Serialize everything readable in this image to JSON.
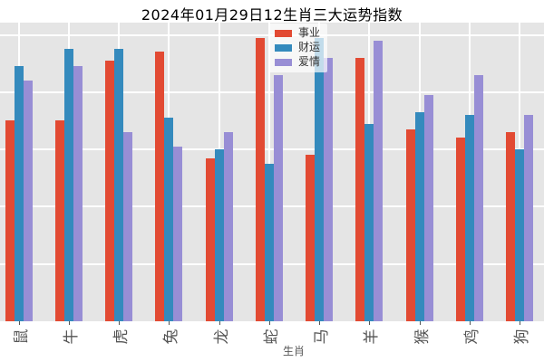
{
  "chart_data": {
    "type": "bar",
    "title": "2024年01月29日12生肖三大运势指数",
    "xlabel": "生肖",
    "ylabel": "",
    "categories": [
      "鼠",
      "牛",
      "虎",
      "兔",
      "龙",
      "蛇",
      "马",
      "羊",
      "猴",
      "鸡",
      "狗"
    ],
    "series": [
      {
        "name": "事业",
        "color": "#E24A33",
        "values": [
          70,
          70,
          91,
          94,
          57,
          99,
          58,
          92,
          67,
          64,
          66
        ]
      },
      {
        "name": "财运",
        "color": "#348ABD",
        "values": [
          89,
          95,
          95,
          71,
          60,
          55,
          99,
          69,
          73,
          72,
          60
        ]
      },
      {
        "name": "爱情",
        "color": "#988ED5",
        "values": [
          84,
          89,
          66,
          61,
          66,
          86,
          92,
          98,
          79,
          86,
          72
        ]
      }
    ],
    "ylim": [
      0,
      104
    ],
    "grid_values": [
      20,
      40,
      60,
      80,
      100
    ],
    "grid": true,
    "legend_position": "upper center",
    "x_tick_label_rotation": 90
  },
  "style": {
    "panel_bg": "#E5E5E5",
    "grid_color": "#FFFFFF",
    "tick_color": "#555555",
    "tick_label_color": "#555555",
    "axis_label_color": "#555555",
    "title_color": "#000000",
    "legend_bg": "rgba(255,255,255,0.7)",
    "legend_text_color": "#333333"
  }
}
